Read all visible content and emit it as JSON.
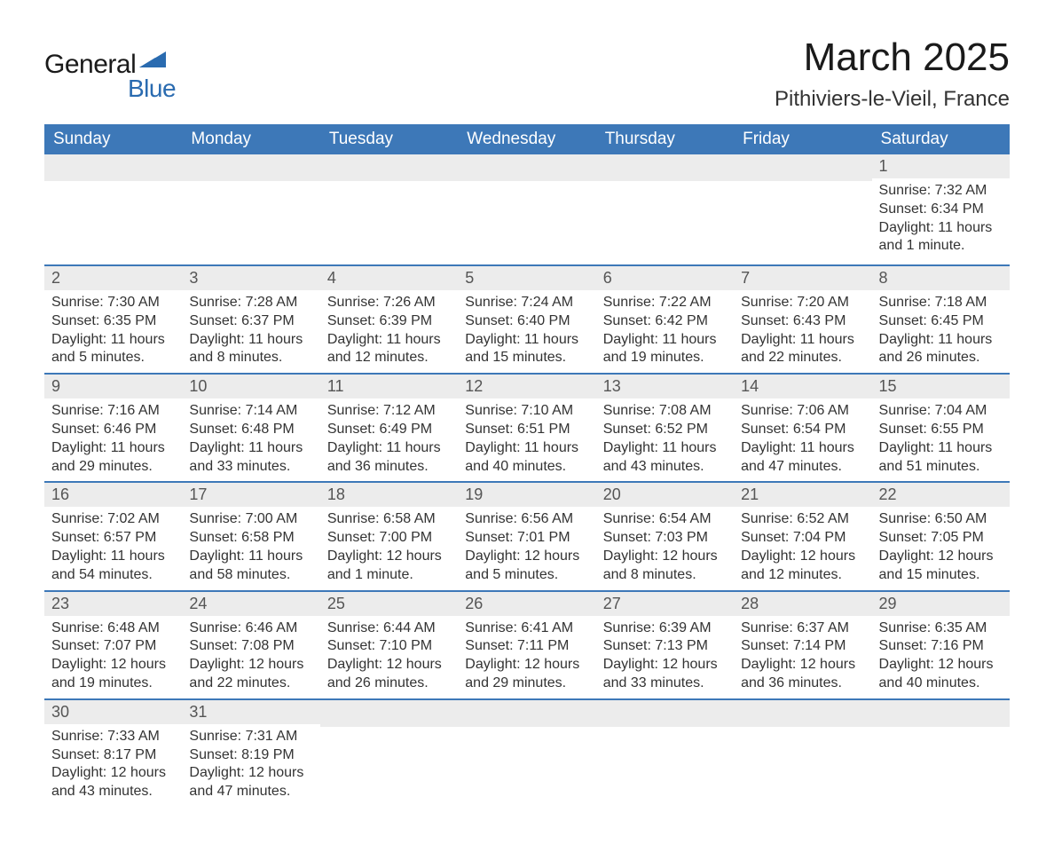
{
  "logo": {
    "word1": "General",
    "word2": "Blue",
    "color": "#2a6bb0"
  },
  "title": "March 2025",
  "location": "Pithiviers-le-Vieil, France",
  "theme": {
    "header_bg": "#3d78b8",
    "header_text": "#ffffff",
    "daynum_bg": "#ececec",
    "row_border": "#3d78b8",
    "body_text": "#333333"
  },
  "days_of_week": [
    "Sunday",
    "Monday",
    "Tuesday",
    "Wednesday",
    "Thursday",
    "Friday",
    "Saturday"
  ],
  "weeks": [
    [
      {
        "empty": true
      },
      {
        "empty": true
      },
      {
        "empty": true
      },
      {
        "empty": true
      },
      {
        "empty": true
      },
      {
        "empty": true
      },
      {
        "num": "1",
        "sunrise": "Sunrise: 7:32 AM",
        "sunset": "Sunset: 6:34 PM",
        "daylight1": "Daylight: 11 hours",
        "daylight2": "and 1 minute."
      }
    ],
    [
      {
        "num": "2",
        "sunrise": "Sunrise: 7:30 AM",
        "sunset": "Sunset: 6:35 PM",
        "daylight1": "Daylight: 11 hours",
        "daylight2": "and 5 minutes."
      },
      {
        "num": "3",
        "sunrise": "Sunrise: 7:28 AM",
        "sunset": "Sunset: 6:37 PM",
        "daylight1": "Daylight: 11 hours",
        "daylight2": "and 8 minutes."
      },
      {
        "num": "4",
        "sunrise": "Sunrise: 7:26 AM",
        "sunset": "Sunset: 6:39 PM",
        "daylight1": "Daylight: 11 hours",
        "daylight2": "and 12 minutes."
      },
      {
        "num": "5",
        "sunrise": "Sunrise: 7:24 AM",
        "sunset": "Sunset: 6:40 PM",
        "daylight1": "Daylight: 11 hours",
        "daylight2": "and 15 minutes."
      },
      {
        "num": "6",
        "sunrise": "Sunrise: 7:22 AM",
        "sunset": "Sunset: 6:42 PM",
        "daylight1": "Daylight: 11 hours",
        "daylight2": "and 19 minutes."
      },
      {
        "num": "7",
        "sunrise": "Sunrise: 7:20 AM",
        "sunset": "Sunset: 6:43 PM",
        "daylight1": "Daylight: 11 hours",
        "daylight2": "and 22 minutes."
      },
      {
        "num": "8",
        "sunrise": "Sunrise: 7:18 AM",
        "sunset": "Sunset: 6:45 PM",
        "daylight1": "Daylight: 11 hours",
        "daylight2": "and 26 minutes."
      }
    ],
    [
      {
        "num": "9",
        "sunrise": "Sunrise: 7:16 AM",
        "sunset": "Sunset: 6:46 PM",
        "daylight1": "Daylight: 11 hours",
        "daylight2": "and 29 minutes."
      },
      {
        "num": "10",
        "sunrise": "Sunrise: 7:14 AM",
        "sunset": "Sunset: 6:48 PM",
        "daylight1": "Daylight: 11 hours",
        "daylight2": "and 33 minutes."
      },
      {
        "num": "11",
        "sunrise": "Sunrise: 7:12 AM",
        "sunset": "Sunset: 6:49 PM",
        "daylight1": "Daylight: 11 hours",
        "daylight2": "and 36 minutes."
      },
      {
        "num": "12",
        "sunrise": "Sunrise: 7:10 AM",
        "sunset": "Sunset: 6:51 PM",
        "daylight1": "Daylight: 11 hours",
        "daylight2": "and 40 minutes."
      },
      {
        "num": "13",
        "sunrise": "Sunrise: 7:08 AM",
        "sunset": "Sunset: 6:52 PM",
        "daylight1": "Daylight: 11 hours",
        "daylight2": "and 43 minutes."
      },
      {
        "num": "14",
        "sunrise": "Sunrise: 7:06 AM",
        "sunset": "Sunset: 6:54 PM",
        "daylight1": "Daylight: 11 hours",
        "daylight2": "and 47 minutes."
      },
      {
        "num": "15",
        "sunrise": "Sunrise: 7:04 AM",
        "sunset": "Sunset: 6:55 PM",
        "daylight1": "Daylight: 11 hours",
        "daylight2": "and 51 minutes."
      }
    ],
    [
      {
        "num": "16",
        "sunrise": "Sunrise: 7:02 AM",
        "sunset": "Sunset: 6:57 PM",
        "daylight1": "Daylight: 11 hours",
        "daylight2": "and 54 minutes."
      },
      {
        "num": "17",
        "sunrise": "Sunrise: 7:00 AM",
        "sunset": "Sunset: 6:58 PM",
        "daylight1": "Daylight: 11 hours",
        "daylight2": "and 58 minutes."
      },
      {
        "num": "18",
        "sunrise": "Sunrise: 6:58 AM",
        "sunset": "Sunset: 7:00 PM",
        "daylight1": "Daylight: 12 hours",
        "daylight2": "and 1 minute."
      },
      {
        "num": "19",
        "sunrise": "Sunrise: 6:56 AM",
        "sunset": "Sunset: 7:01 PM",
        "daylight1": "Daylight: 12 hours",
        "daylight2": "and 5 minutes."
      },
      {
        "num": "20",
        "sunrise": "Sunrise: 6:54 AM",
        "sunset": "Sunset: 7:03 PM",
        "daylight1": "Daylight: 12 hours",
        "daylight2": "and 8 minutes."
      },
      {
        "num": "21",
        "sunrise": "Sunrise: 6:52 AM",
        "sunset": "Sunset: 7:04 PM",
        "daylight1": "Daylight: 12 hours",
        "daylight2": "and 12 minutes."
      },
      {
        "num": "22",
        "sunrise": "Sunrise: 6:50 AM",
        "sunset": "Sunset: 7:05 PM",
        "daylight1": "Daylight: 12 hours",
        "daylight2": "and 15 minutes."
      }
    ],
    [
      {
        "num": "23",
        "sunrise": "Sunrise: 6:48 AM",
        "sunset": "Sunset: 7:07 PM",
        "daylight1": "Daylight: 12 hours",
        "daylight2": "and 19 minutes."
      },
      {
        "num": "24",
        "sunrise": "Sunrise: 6:46 AM",
        "sunset": "Sunset: 7:08 PM",
        "daylight1": "Daylight: 12 hours",
        "daylight2": "and 22 minutes."
      },
      {
        "num": "25",
        "sunrise": "Sunrise: 6:44 AM",
        "sunset": "Sunset: 7:10 PM",
        "daylight1": "Daylight: 12 hours",
        "daylight2": "and 26 minutes."
      },
      {
        "num": "26",
        "sunrise": "Sunrise: 6:41 AM",
        "sunset": "Sunset: 7:11 PM",
        "daylight1": "Daylight: 12 hours",
        "daylight2": "and 29 minutes."
      },
      {
        "num": "27",
        "sunrise": "Sunrise: 6:39 AM",
        "sunset": "Sunset: 7:13 PM",
        "daylight1": "Daylight: 12 hours",
        "daylight2": "and 33 minutes."
      },
      {
        "num": "28",
        "sunrise": "Sunrise: 6:37 AM",
        "sunset": "Sunset: 7:14 PM",
        "daylight1": "Daylight: 12 hours",
        "daylight2": "and 36 minutes."
      },
      {
        "num": "29",
        "sunrise": "Sunrise: 6:35 AM",
        "sunset": "Sunset: 7:16 PM",
        "daylight1": "Daylight: 12 hours",
        "daylight2": "and 40 minutes."
      }
    ],
    [
      {
        "num": "30",
        "sunrise": "Sunrise: 7:33 AM",
        "sunset": "Sunset: 8:17 PM",
        "daylight1": "Daylight: 12 hours",
        "daylight2": "and 43 minutes."
      },
      {
        "num": "31",
        "sunrise": "Sunrise: 7:31 AM",
        "sunset": "Sunset: 8:19 PM",
        "daylight1": "Daylight: 12 hours",
        "daylight2": "and 47 minutes."
      },
      {
        "empty": true
      },
      {
        "empty": true
      },
      {
        "empty": true
      },
      {
        "empty": true
      },
      {
        "empty": true
      }
    ]
  ]
}
